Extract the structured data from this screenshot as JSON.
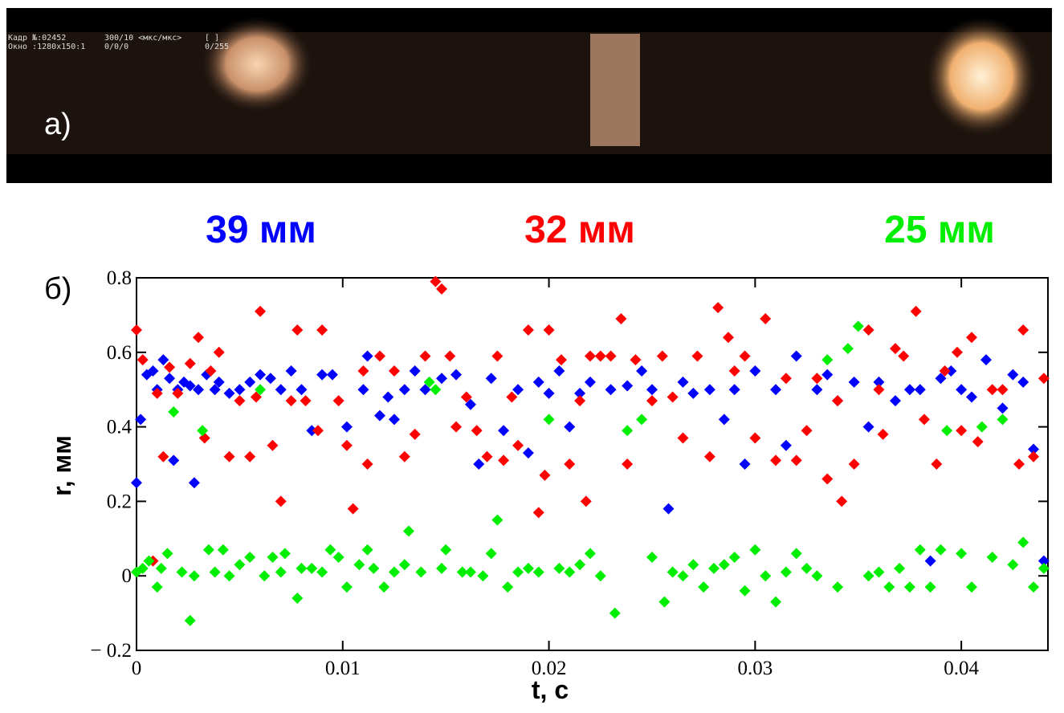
{
  "photo": {
    "overlay": [
      "Кадр №:02452",
      "Окно :1280x150:1",
      "300/10 <мкс/мкс>",
      "0/0/0",
      "[ ]",
      "0/255"
    ],
    "label": "а)"
  },
  "panel_label": "б)",
  "chart_data": {
    "type": "scatter",
    "xlabel": "t, c",
    "ylabel": "r, мм",
    "xlim": [
      0,
      0.0442
    ],
    "ylim": [
      -0.2,
      0.8
    ],
    "xticks": [
      0,
      0.01,
      0.02,
      0.03,
      0.04
    ],
    "yticks": [
      {
        "value": -0.2,
        "label": "− 0.2"
      },
      0,
      0.2,
      0.4,
      0.6,
      0.8
    ],
    "series": [
      {
        "name": "39 мм",
        "color": "#0000ff",
        "x": [
          0,
          0.0002,
          0.0005,
          0.0008,
          0.001,
          0.0013,
          0.0016,
          0.0018,
          0.002,
          0.0023,
          0.0026,
          0.0028,
          0.003,
          0.0034,
          0.0038,
          0.004,
          0.0045,
          0.005,
          0.0055,
          0.006,
          0.0065,
          0.007,
          0.0075,
          0.008,
          0.0085,
          0.009,
          0.0095,
          0.0102,
          0.011,
          0.0112,
          0.0118,
          0.0122,
          0.0125,
          0.013,
          0.0135,
          0.014,
          0.0148,
          0.0155,
          0.0162,
          0.0166,
          0.0172,
          0.0178,
          0.0185,
          0.019,
          0.0195,
          0.02,
          0.0205,
          0.021,
          0.0215,
          0.022,
          0.023,
          0.0238,
          0.0245,
          0.025,
          0.0258,
          0.0265,
          0.027,
          0.0278,
          0.0285,
          0.029,
          0.0295,
          0.03,
          0.031,
          0.0315,
          0.032,
          0.033,
          0.0335,
          0.034,
          0.0348,
          0.0355,
          0.036,
          0.0368,
          0.0375,
          0.038,
          0.0385,
          0.039,
          0.0395,
          0.04,
          0.0405,
          0.0412,
          0.042,
          0.0425,
          0.043,
          0.0435,
          0.044
        ],
        "values": [
          0.25,
          0.42,
          0.54,
          0.55,
          0.5,
          0.58,
          0.53,
          0.31,
          0.5,
          0.52,
          0.51,
          0.25,
          0.5,
          0.54,
          0.5,
          0.52,
          0.49,
          0.5,
          0.52,
          0.54,
          0.53,
          0.5,
          0.55,
          0.5,
          0.39,
          0.54,
          0.54,
          0.4,
          0.5,
          0.59,
          0.43,
          0.48,
          0.42,
          0.5,
          0.55,
          0.5,
          0.53,
          0.54,
          0.46,
          0.3,
          0.53,
          0.39,
          0.5,
          0.33,
          0.52,
          0.49,
          0.55,
          0.4,
          0.49,
          0.52,
          0.5,
          0.51,
          0.55,
          0.5,
          0.18,
          0.52,
          0.49,
          0.5,
          0.42,
          0.5,
          0.3,
          0.55,
          0.5,
          0.35,
          0.59,
          0.5,
          0.54,
          0.47,
          0.52,
          0.4,
          0.52,
          0.47,
          0.5,
          0.5,
          0.04,
          0.53,
          0.55,
          0.5,
          0.48,
          0.58,
          0.45,
          0.54,
          0.52,
          0.34,
          0.04
        ]
      },
      {
        "name": "32 мм",
        "color": "#ff0000",
        "x": [
          0,
          0.0003,
          0.0008,
          0.001,
          0.0013,
          0.0016,
          0.002,
          0.0026,
          0.003,
          0.0033,
          0.0036,
          0.004,
          0.0045,
          0.005,
          0.0055,
          0.0058,
          0.006,
          0.0066,
          0.007,
          0.0075,
          0.0078,
          0.0082,
          0.0088,
          0.009,
          0.0098,
          0.0102,
          0.0105,
          0.011,
          0.0112,
          0.0118,
          0.0125,
          0.013,
          0.0135,
          0.014,
          0.0145,
          0.0148,
          0.0152,
          0.0155,
          0.016,
          0.0165,
          0.017,
          0.0175,
          0.0178,
          0.0182,
          0.0185,
          0.019,
          0.0195,
          0.0198,
          0.02,
          0.0206,
          0.021,
          0.0215,
          0.0218,
          0.022,
          0.0225,
          0.023,
          0.0235,
          0.0238,
          0.0242,
          0.025,
          0.0255,
          0.026,
          0.0265,
          0.0272,
          0.0278,
          0.0282,
          0.0287,
          0.029,
          0.0295,
          0.03,
          0.0305,
          0.031,
          0.0315,
          0.032,
          0.0325,
          0.033,
          0.0335,
          0.034,
          0.0342,
          0.0348,
          0.0355,
          0.036,
          0.0362,
          0.0368,
          0.0372,
          0.0378,
          0.0382,
          0.0388,
          0.0392,
          0.0398,
          0.04,
          0.0405,
          0.0408,
          0.0415,
          0.042,
          0.0428,
          0.043,
          0.0435,
          0.044
        ],
        "values": [
          0.66,
          0.58,
          0.04,
          0.49,
          0.32,
          0.56,
          0.49,
          0.57,
          0.64,
          0.37,
          0.55,
          0.6,
          0.32,
          0.47,
          0.32,
          0.48,
          0.71,
          0.35,
          0.2,
          0.47,
          0.66,
          0.47,
          0.39,
          0.66,
          0.47,
          0.35,
          0.18,
          0.55,
          0.3,
          0.59,
          0.55,
          0.32,
          0.38,
          0.59,
          0.79,
          0.77,
          0.59,
          0.4,
          0.48,
          0.39,
          0.32,
          0.59,
          0.31,
          0.48,
          0.35,
          0.66,
          0.17,
          0.27,
          0.66,
          0.58,
          0.3,
          0.47,
          0.2,
          0.59,
          0.59,
          0.59,
          0.69,
          0.3,
          0.58,
          0.47,
          0.59,
          0.48,
          0.37,
          0.59,
          0.32,
          0.72,
          0.64,
          0.55,
          0.59,
          0.37,
          0.69,
          0.31,
          0.53,
          0.31,
          0.39,
          0.53,
          0.26,
          0.47,
          0.2,
          0.3,
          0.66,
          0.5,
          0.38,
          0.61,
          0.59,
          0.71,
          0.42,
          0.3,
          0.55,
          0.6,
          0.39,
          0.64,
          0.36,
          0.5,
          0.5,
          0.3,
          0.66,
          0.32,
          0.53
        ]
      },
      {
        "name": "25 мм",
        "color": "#00ee00",
        "x": [
          0,
          0.0003,
          0.0006,
          0.001,
          0.0012,
          0.0015,
          0.0018,
          0.0022,
          0.0026,
          0.0028,
          0.0032,
          0.0035,
          0.0038,
          0.0042,
          0.0045,
          0.005,
          0.0055,
          0.006,
          0.0062,
          0.0066,
          0.007,
          0.0072,
          0.0078,
          0.008,
          0.0085,
          0.009,
          0.0094,
          0.0098,
          0.0102,
          0.0108,
          0.0112,
          0.0115,
          0.012,
          0.0125,
          0.013,
          0.0132,
          0.0138,
          0.0142,
          0.0145,
          0.0148,
          0.015,
          0.0158,
          0.0162,
          0.0168,
          0.0172,
          0.0175,
          0.018,
          0.0185,
          0.019,
          0.0195,
          0.02,
          0.0205,
          0.021,
          0.0215,
          0.022,
          0.0225,
          0.0232,
          0.0238,
          0.0245,
          0.025,
          0.0256,
          0.026,
          0.0265,
          0.027,
          0.0275,
          0.028,
          0.0285,
          0.029,
          0.0295,
          0.03,
          0.0305,
          0.031,
          0.0315,
          0.032,
          0.0325,
          0.033,
          0.0335,
          0.034,
          0.0345,
          0.035,
          0.0355,
          0.036,
          0.0365,
          0.037,
          0.0375,
          0.038,
          0.0385,
          0.039,
          0.0393,
          0.04,
          0.0405,
          0.041,
          0.0415,
          0.042,
          0.0425,
          0.043,
          0.0435,
          0.044
        ],
        "values": [
          0.01,
          0.02,
          0.04,
          -0.03,
          0.02,
          0.06,
          0.44,
          0.01,
          -0.12,
          0.0,
          0.39,
          0.07,
          0.01,
          0.07,
          0.0,
          0.03,
          0.05,
          0.5,
          0.0,
          0.05,
          0.01,
          0.06,
          -0.06,
          0.02,
          0.02,
          0.01,
          0.07,
          0.05,
          -0.03,
          0.03,
          0.07,
          0.02,
          -0.03,
          0.01,
          0.03,
          0.12,
          0.01,
          0.52,
          0.5,
          0.02,
          0.07,
          0.01,
          0.01,
          0.0,
          0.06,
          0.15,
          -0.03,
          0.01,
          0.02,
          0.01,
          0.42,
          0.02,
          0.01,
          0.03,
          0.06,
          0.0,
          -0.1,
          0.39,
          0.42,
          0.05,
          -0.07,
          0.01,
          0.0,
          0.03,
          -0.03,
          0.02,
          0.03,
          0.05,
          -0.04,
          0.07,
          0.0,
          -0.07,
          0.01,
          0.06,
          0.02,
          0.0,
          0.58,
          -0.03,
          0.61,
          0.67,
          0.0,
          0.01,
          -0.03,
          0.02,
          -0.03,
          0.07,
          -0.03,
          0.07,
          0.39,
          0.06,
          -0.03,
          0.4,
          0.05,
          0.42,
          0.03,
          0.09,
          -0.03,
          0.02
        ]
      }
    ]
  }
}
